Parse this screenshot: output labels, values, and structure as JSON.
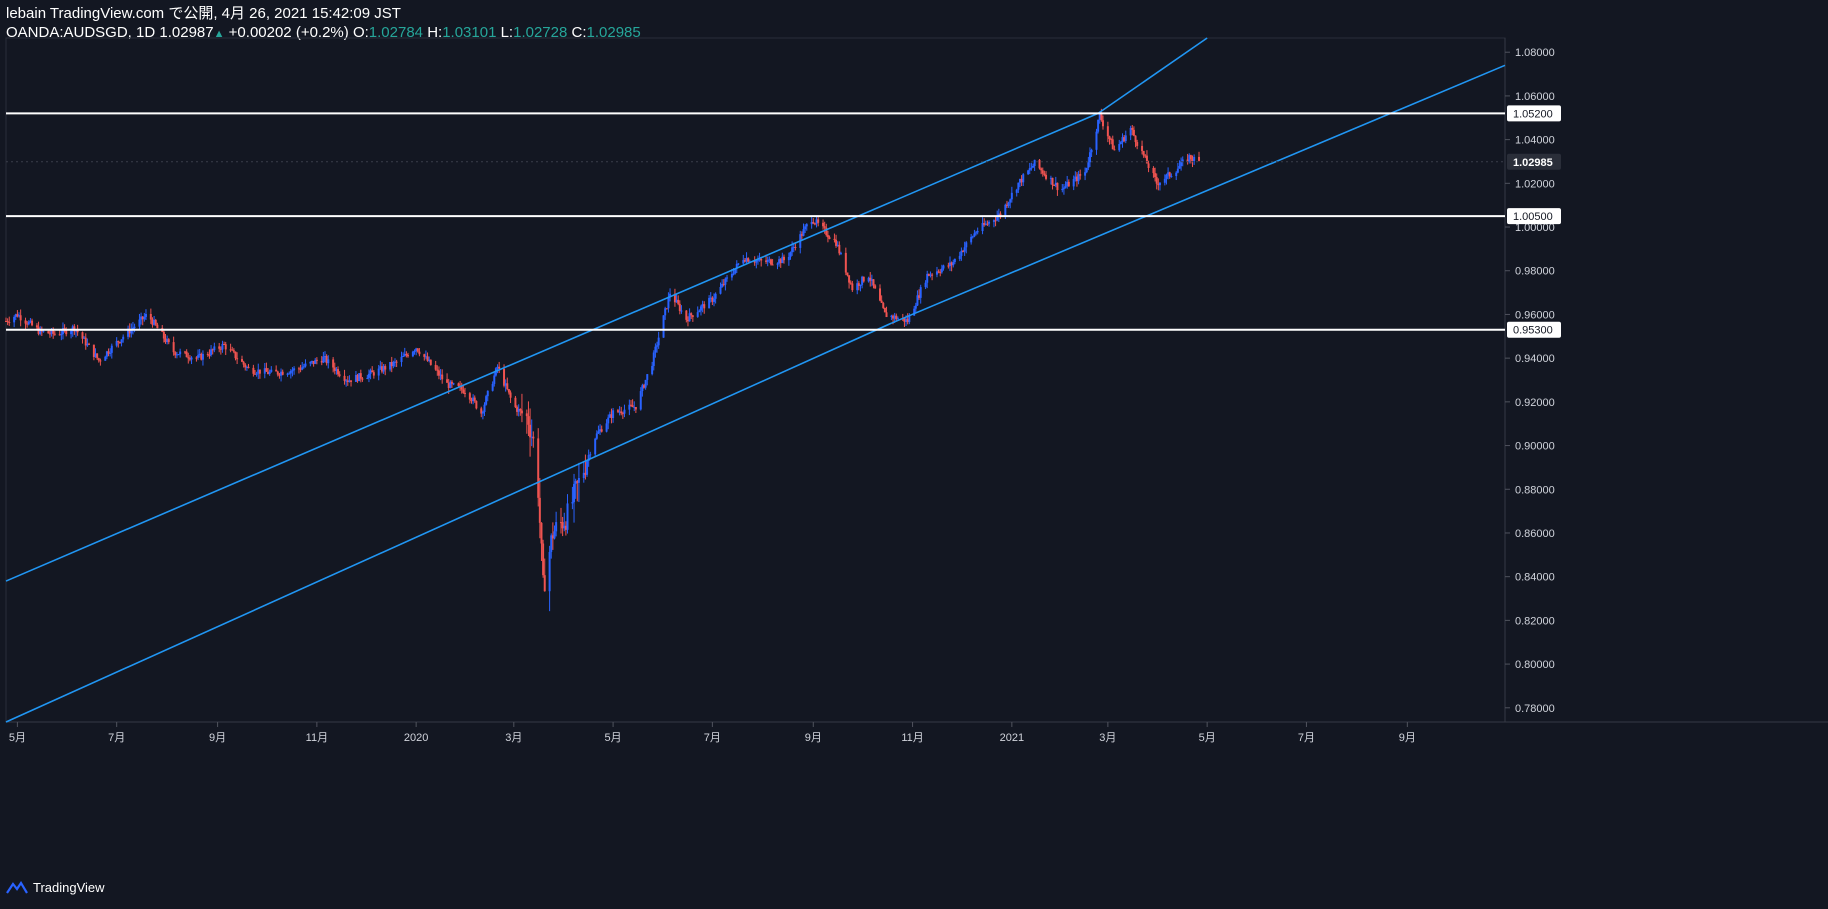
{
  "header": {
    "published": "lebain TradingView.com で公開, 4月 26, 2021 15:42:09 JST",
    "symbol": "OANDA:AUDSGD, 1D",
    "last": "1.02987",
    "change_arrow": "▲",
    "change": "+0.00202 (+0.2%)",
    "o_label": "O:",
    "o_value": "1.02784",
    "h_label": "H:",
    "h_value": "1.03101",
    "l_label": "L:",
    "l_value": "1.02728",
    "c_label": "C:",
    "c_value": "1.02985"
  },
  "footer": {
    "brand": "TradingView"
  },
  "colors": {
    "background": "#131722",
    "up": "#2962ff",
    "down": "#ef5350",
    "trendline": "#2196f3",
    "hline": "#ffffff",
    "grid": "#1e222d",
    "axis_text": "#d1d4dc"
  },
  "chart_data": {
    "type": "candlestick",
    "symbol": "OANDA:AUDSGD",
    "interval": "1D",
    "x_ticks": [
      "5月",
      "7月",
      "9月",
      "11月",
      "2020",
      "3月",
      "5月",
      "7月",
      "9月",
      "11月",
      "2021",
      "3月",
      "5月",
      "7月",
      "9月"
    ],
    "y_ticks": [
      "1.08000",
      "1.06000",
      "1.04000",
      "1.02000",
      "1.00000",
      "0.98000",
      "0.96000",
      "0.94000",
      "0.92000",
      "0.90000",
      "0.88000",
      "0.86000",
      "0.84000",
      "0.82000",
      "0.80000",
      "0.78000"
    ],
    "ylim": [
      0.7735,
      1.0865
    ],
    "xlim": [
      "2019-04-24",
      "2021-10-31"
    ],
    "current_price": "1.02985",
    "horizontal_levels": [
      {
        "value": 1.052,
        "label": "1.05200"
      },
      {
        "value": 1.005,
        "label": "1.00500"
      },
      {
        "value": 0.953,
        "label": "0.95300"
      }
    ],
    "channel_lines": [
      {
        "name": "upper",
        "points": [
          [
            "2019-04-24",
            0.838
          ],
          [
            "2021-02-23",
            1.052
          ],
          [
            "2021-05-01",
            1.0865
          ]
        ]
      },
      {
        "name": "lower",
        "points": [
          [
            "2019-04-24",
            0.7735
          ],
          [
            "2020-10-19",
            0.956
          ],
          [
            "2021-10-31",
            1.074
          ]
        ]
      }
    ],
    "price_path": [
      [
        "2019-04-24",
        0.957
      ],
      [
        "2019-05-01",
        0.96
      ],
      [
        "2019-05-15",
        0.952
      ],
      [
        "2019-05-25",
        0.951
      ],
      [
        "2019-06-05",
        0.954
      ],
      [
        "2019-06-20",
        0.939
      ],
      [
        "2019-07-05",
        0.95
      ],
      [
        "2019-07-20",
        0.96
      ],
      [
        "2019-08-05",
        0.943
      ],
      [
        "2019-08-20",
        0.94
      ],
      [
        "2019-09-05",
        0.946
      ],
      [
        "2019-09-20",
        0.935
      ],
      [
        "2019-10-05",
        0.933
      ],
      [
        "2019-10-20",
        0.935
      ],
      [
        "2019-11-05",
        0.94
      ],
      [
        "2019-11-20",
        0.93
      ],
      [
        "2019-12-05",
        0.933
      ],
      [
        "2019-12-20",
        0.938
      ],
      [
        "2020-01-01",
        0.945
      ],
      [
        "2020-01-20",
        0.928
      ],
      [
        "2020-02-01",
        0.925
      ],
      [
        "2020-02-10",
        0.915
      ],
      [
        "2020-02-20",
        0.936
      ],
      [
        "2020-03-01",
        0.918
      ],
      [
        "2020-03-10",
        0.912
      ],
      [
        "2020-03-15",
        0.895
      ],
      [
        "2020-03-19",
        0.835
      ],
      [
        "2020-03-25",
        0.86
      ],
      [
        "2020-04-03",
        0.868
      ],
      [
        "2020-04-10",
        0.883
      ],
      [
        "2020-04-20",
        0.904
      ],
      [
        "2020-05-01",
        0.915
      ],
      [
        "2020-05-15",
        0.918
      ],
      [
        "2020-05-25",
        0.938
      ],
      [
        "2020-06-05",
        0.97
      ],
      [
        "2020-06-15",
        0.958
      ],
      [
        "2020-07-01",
        0.967
      ],
      [
        "2020-07-10",
        0.976
      ],
      [
        "2020-07-20",
        0.986
      ],
      [
        "2020-08-01",
        0.984
      ],
      [
        "2020-08-15",
        0.985
      ],
      [
        "2020-08-31",
        1.004
      ],
      [
        "2020-09-15",
        0.993
      ],
      [
        "2020-09-25",
        0.972
      ],
      [
        "2020-10-05",
        0.978
      ],
      [
        "2020-10-15",
        0.96
      ],
      [
        "2020-10-29",
        0.957
      ],
      [
        "2020-11-10",
        0.978
      ],
      [
        "2020-11-25",
        0.983
      ],
      [
        "2020-12-10",
        0.998
      ],
      [
        "2020-12-25",
        1.006
      ],
      [
        "2021-01-05",
        1.02
      ],
      [
        "2021-01-15",
        1.029
      ],
      [
        "2021-01-31",
        1.017
      ],
      [
        "2021-02-15",
        1.025
      ],
      [
        "2021-02-24",
        1.051
      ],
      [
        "2021-03-05",
        1.035
      ],
      [
        "2021-03-15",
        1.045
      ],
      [
        "2021-03-31",
        1.02
      ],
      [
        "2021-04-10",
        1.025
      ],
      [
        "2021-04-20",
        1.032
      ],
      [
        "2021-04-26",
        1.02985
      ]
    ]
  }
}
